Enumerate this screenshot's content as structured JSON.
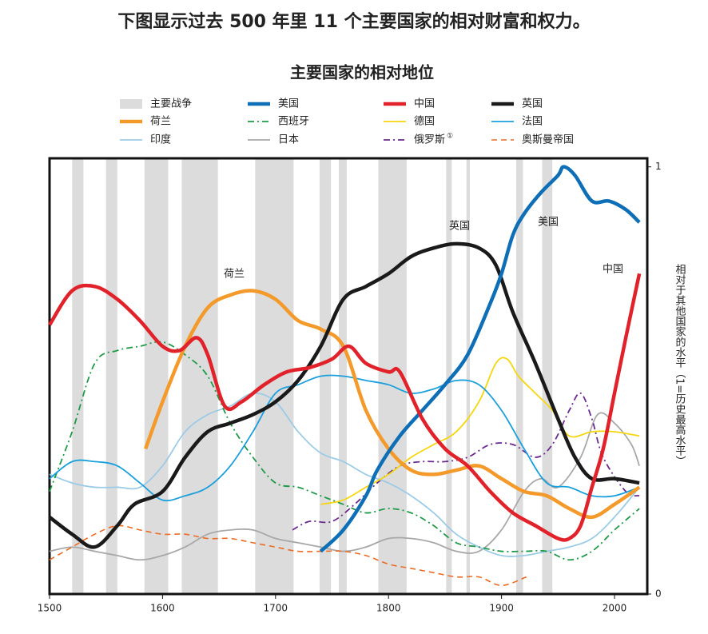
{
  "headline": "下图显示过去 500 年里 11 个主要国家的相对财富和权力。",
  "chart_data": {
    "type": "line",
    "title": "主要国家的相对地位",
    "ylabel": "相对于其他国家的水平（1=历史最高水平）",
    "xlim": [
      1500,
      2029
    ],
    "xticks": [
      1500,
      1600,
      1700,
      1800,
      1900,
      2000
    ],
    "ylim": [
      0,
      1.02
    ],
    "yticks": [
      0,
      1
    ],
    "wars": {
      "name": "主要战争",
      "color": "#dcdcdc",
      "periods": [
        [
          1520,
          1530
        ],
        [
          1550,
          1560
        ],
        [
          1584,
          1605
        ],
        [
          1617,
          1649
        ],
        [
          1682,
          1716
        ],
        [
          1739,
          1749
        ],
        [
          1756,
          1763
        ],
        [
          1791,
          1816
        ],
        [
          1851,
          1856
        ],
        [
          1869,
          1872
        ],
        [
          1913,
          1919
        ],
        [
          1936,
          1945
        ]
      ]
    },
    "annotations": [
      "荷兰",
      "英国",
      "美国",
      "中国"
    ],
    "series": [
      {
        "name": "美国",
        "color": "#0e6fb7",
        "style": "thick",
        "x": [
          1740,
          1760,
          1780,
          1790,
          1810,
          1830,
          1850,
          1870,
          1890,
          1900,
          1910,
          1920,
          1935,
          1950,
          1955,
          1965,
          1980,
          1995,
          2010,
          2022
        ],
        "values": [
          0.1,
          0.15,
          0.23,
          0.29,
          0.37,
          0.43,
          0.49,
          0.56,
          0.68,
          0.75,
          0.84,
          0.89,
          0.94,
          0.98,
          1.0,
          0.98,
          0.92,
          0.92,
          0.9,
          0.87
        ]
      },
      {
        "name": "中国",
        "color": "#e2222a",
        "style": "thick",
        "x": [
          1500,
          1520,
          1540,
          1560,
          1580,
          1600,
          1615,
          1630,
          1640,
          1655,
          1670,
          1690,
          1710,
          1730,
          1750,
          1765,
          1780,
          1800,
          1810,
          1830,
          1850,
          1870,
          1890,
          1910,
          1930,
          1950,
          1960,
          1970,
          1980,
          1990,
          2000,
          2010,
          2022
        ],
        "values": [
          0.63,
          0.71,
          0.72,
          0.69,
          0.64,
          0.58,
          0.57,
          0.6,
          0.56,
          0.44,
          0.45,
          0.49,
          0.52,
          0.53,
          0.55,
          0.58,
          0.54,
          0.52,
          0.52,
          0.41,
          0.34,
          0.3,
          0.24,
          0.19,
          0.16,
          0.13,
          0.13,
          0.16,
          0.25,
          0.34,
          0.47,
          0.6,
          0.75
        ]
      },
      {
        "name": "英国",
        "color": "#1a1a1a",
        "style": "thick",
        "x": [
          1500,
          1520,
          1540,
          1560,
          1575,
          1600,
          1620,
          1640,
          1660,
          1680,
          1700,
          1720,
          1740,
          1760,
          1780,
          1800,
          1820,
          1840,
          1860,
          1880,
          1895,
          1910,
          1930,
          1950,
          1965,
          1980,
          2000,
          2022
        ],
        "values": [
          0.18,
          0.14,
          0.11,
          0.16,
          0.21,
          0.24,
          0.32,
          0.38,
          0.4,
          0.42,
          0.45,
          0.5,
          0.58,
          0.69,
          0.72,
          0.75,
          0.79,
          0.81,
          0.82,
          0.81,
          0.77,
          0.66,
          0.54,
          0.41,
          0.32,
          0.27,
          0.27,
          0.26
        ]
      },
      {
        "name": "荷兰",
        "color": "#f39a2b",
        "style": "thick",
        "x": [
          1585,
          1600,
          1620,
          1640,
          1660,
          1680,
          1700,
          1720,
          1740,
          1760,
          1780,
          1800,
          1820,
          1840,
          1860,
          1880,
          1900,
          1920,
          1940,
          1960,
          1980,
          2000,
          2022
        ],
        "values": [
          0.34,
          0.45,
          0.58,
          0.67,
          0.7,
          0.71,
          0.69,
          0.64,
          0.62,
          0.58,
          0.43,
          0.34,
          0.29,
          0.28,
          0.29,
          0.3,
          0.27,
          0.24,
          0.23,
          0.2,
          0.18,
          0.21,
          0.25
        ]
      },
      {
        "name": "西班牙",
        "color": "#1f9a48",
        "style": "dashdot",
        "x": [
          1500,
          1520,
          1540,
          1560,
          1580,
          1600,
          1620,
          1640,
          1660,
          1680,
          1700,
          1720,
          1740,
          1760,
          1780,
          1800,
          1820,
          1840,
          1860,
          1880,
          1900,
          1920,
          1940,
          1960,
          1980,
          2000,
          2022
        ],
        "values": [
          0.24,
          0.38,
          0.54,
          0.57,
          0.58,
          0.59,
          0.56,
          0.51,
          0.4,
          0.32,
          0.26,
          0.25,
          0.23,
          0.21,
          0.19,
          0.2,
          0.19,
          0.16,
          0.12,
          0.11,
          0.1,
          0.1,
          0.1,
          0.08,
          0.1,
          0.15,
          0.2
        ]
      },
      {
        "name": "德国",
        "color": "#f5d60f",
        "style": "thin",
        "x": [
          1740,
          1760,
          1780,
          1800,
          1820,
          1840,
          1860,
          1880,
          1895,
          1905,
          1915,
          1930,
          1945,
          1960,
          1980,
          2000,
          2022
        ],
        "values": [
          0.21,
          0.22,
          0.25,
          0.28,
          0.32,
          0.35,
          0.38,
          0.45,
          0.54,
          0.55,
          0.51,
          0.47,
          0.43,
          0.37,
          0.38,
          0.38,
          0.37
        ]
      },
      {
        "name": "法国",
        "color": "#1aa0dc",
        "style": "thin",
        "x": [
          1500,
          1520,
          1540,
          1560,
          1580,
          1600,
          1620,
          1640,
          1660,
          1680,
          1700,
          1720,
          1740,
          1760,
          1780,
          1800,
          1820,
          1840,
          1860,
          1880,
          1900,
          1920,
          1940,
          1960,
          1980,
          2000,
          2022
        ],
        "values": [
          0.27,
          0.31,
          0.31,
          0.3,
          0.26,
          0.22,
          0.23,
          0.25,
          0.3,
          0.38,
          0.47,
          0.49,
          0.51,
          0.51,
          0.5,
          0.49,
          0.47,
          0.48,
          0.5,
          0.49,
          0.43,
          0.34,
          0.26,
          0.25,
          0.23,
          0.23,
          0.25
        ]
      },
      {
        "name": "印度",
        "color": "#9ccbe6",
        "style": "thin",
        "x": [
          1500,
          1520,
          1540,
          1560,
          1580,
          1600,
          1620,
          1640,
          1660,
          1680,
          1700,
          1720,
          1740,
          1760,
          1780,
          1800,
          1820,
          1840,
          1860,
          1880,
          1900,
          1920,
          1940,
          1960,
          1980,
          2000,
          2022
        ],
        "values": [
          0.28,
          0.26,
          0.25,
          0.25,
          0.25,
          0.3,
          0.38,
          0.42,
          0.44,
          0.47,
          0.45,
          0.38,
          0.33,
          0.31,
          0.28,
          0.26,
          0.23,
          0.19,
          0.14,
          0.11,
          0.09,
          0.09,
          0.1,
          0.11,
          0.13,
          0.18,
          0.25
        ]
      },
      {
        "name": "日本",
        "color": "#a8a8a8",
        "style": "thin",
        "x": [
          1500,
          1520,
          1540,
          1560,
          1580,
          1600,
          1620,
          1640,
          1660,
          1680,
          1700,
          1720,
          1740,
          1760,
          1780,
          1800,
          1820,
          1840,
          1860,
          1880,
          1900,
          1920,
          1935,
          1950,
          1970,
          1985,
          2000,
          2015,
          2022
        ],
        "values": [
          0.1,
          0.11,
          0.1,
          0.09,
          0.08,
          0.09,
          0.11,
          0.14,
          0.15,
          0.15,
          0.13,
          0.12,
          0.11,
          0.1,
          0.11,
          0.13,
          0.13,
          0.12,
          0.1,
          0.1,
          0.15,
          0.24,
          0.27,
          0.25,
          0.32,
          0.42,
          0.4,
          0.35,
          0.3
        ]
      },
      {
        "name": "俄罗斯",
        "name_note": "①",
        "color": "#6b2a8e",
        "style": "dashdot",
        "x": [
          1715,
          1730,
          1750,
          1770,
          1790,
          1810,
          1830,
          1850,
          1870,
          1890,
          1910,
          1930,
          1945,
          1960,
          1970,
          1980,
          1990,
          2010,
          2022
        ],
        "values": [
          0.15,
          0.17,
          0.17,
          0.21,
          0.26,
          0.3,
          0.31,
          0.31,
          0.32,
          0.35,
          0.35,
          0.32,
          0.35,
          0.43,
          0.47,
          0.41,
          0.32,
          0.24,
          0.23
        ]
      },
      {
        "name": "奥斯曼帝国",
        "color": "#ee6a22",
        "style": "dashed",
        "x": [
          1500,
          1520,
          1540,
          1560,
          1580,
          1600,
          1620,
          1640,
          1660,
          1680,
          1700,
          1720,
          1740,
          1760,
          1780,
          1800,
          1820,
          1840,
          1860,
          1880,
          1900,
          1922
        ],
        "values": [
          0.08,
          0.11,
          0.14,
          0.16,
          0.15,
          0.14,
          0.14,
          0.13,
          0.13,
          0.12,
          0.11,
          0.1,
          0.1,
          0.1,
          0.09,
          0.07,
          0.06,
          0.05,
          0.04,
          0.04,
          0.02,
          0.04
        ]
      }
    ]
  }
}
